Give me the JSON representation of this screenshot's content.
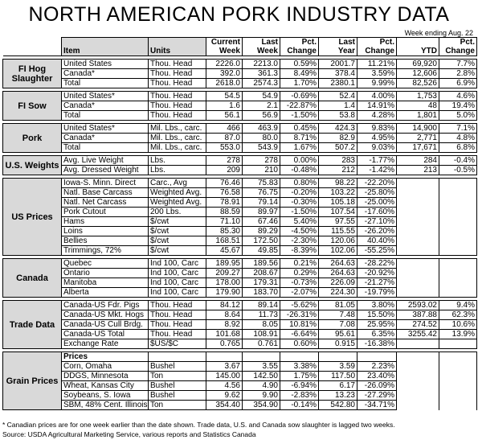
{
  "title": "NORTH AMERICAN PORK INDUSTRY DATA",
  "subtitle": "Week ending Aug. 22",
  "header": [
    "Item",
    "Units",
    "Current Week",
    "Last Week",
    "Pct. Change",
    "Last Year",
    "Pct. Change",
    "YTD",
    "Pct. Change"
  ],
  "groups": [
    {
      "label": "FI Hog Slaughter",
      "rows": [
        [
          "United States",
          "Thou. Head",
          "2226.0",
          "2213.0",
          "0.59%",
          "2001.7",
          "11.21%",
          "69,920",
          "7.7%"
        ],
        [
          "Canada*",
          "Thou. Head",
          "392.0",
          "361.3",
          "8.49%",
          "378.4",
          "3.59%",
          "12,606",
          "2.8%"
        ],
        [
          "Total",
          "Thou. Head",
          "2618.0",
          "2574.3",
          "1.70%",
          "2380.1",
          "9.99%",
          "82,526",
          "6.9%"
        ]
      ]
    },
    {
      "label": "FI Sow",
      "rows": [
        [
          "United States*",
          "Thou. Head",
          "54.5",
          "54.9",
          "-0.69%",
          "52.4",
          "4.00%",
          "1,753",
          "4.6%"
        ],
        [
          "Canada*",
          "Thou. Head",
          "1.6",
          "2.1",
          "-22.87%",
          "1.4",
          "14.91%",
          "48",
          "19.4%"
        ],
        [
          "Total",
          "Thou. Head",
          "56.1",
          "56.9",
          "-1.50%",
          "53.8",
          "4.28%",
          "1,801",
          "5.0%"
        ]
      ]
    },
    {
      "label": "Pork",
      "rows": [
        [
          "United States*",
          "Mil. Lbs., carc.",
          "466",
          "463.9",
          "0.45%",
          "424.3",
          "9.83%",
          "14,900",
          "7.1%"
        ],
        [
          "Canada*",
          "Mil. Lbs., carc.",
          "87.0",
          "80.0",
          "8.71%",
          "82.9",
          "4.95%",
          "2,771",
          "4.8%"
        ],
        [
          "Total",
          "Mil. Lbs., carc.",
          "553.0",
          "543.9",
          "1.67%",
          "507.2",
          "9.03%",
          "17,671",
          "6.8%"
        ]
      ]
    },
    {
      "label": "U.S. Weights",
      "rows": [
        [
          "Avg. Live Weight",
          "Lbs.",
          "278",
          "278",
          "0.00%",
          "283",
          "-1.77%",
          "284",
          "-0.4%"
        ],
        [
          "Avg. Dressed Weight",
          "Lbs.",
          "209",
          "210",
          "-0.48%",
          "212",
          "-1.42%",
          "213",
          "-0.5%"
        ]
      ]
    },
    {
      "label": "US Prices",
      "rows": [
        [
          "Iowa-S. Minn. Direct",
          "Carc., Avg",
          "76.46",
          "75.83",
          "0.80%",
          "98.22",
          "-22.20%"
        ],
        [
          "Natl. Base Carcass",
          "Weighted Avg.",
          "76.58",
          "76.75",
          "-0.20%",
          "103.22",
          "-25.80%"
        ],
        [
          "Natl. Net Carcass",
          "Weighted Avg.",
          "78.91",
          "79.14",
          "-0.30%",
          "105.18",
          "-25.00%"
        ],
        [
          "Pork Cutout",
          "200 Lbs.",
          "88.59",
          "89.97",
          "-1.50%",
          "107.54",
          "-17.60%"
        ],
        [
          "Hams",
          "$/cwt",
          "71.10",
          "67.46",
          "5.40%",
          "97.55",
          "-27.10%"
        ],
        [
          "Loins",
          "$/cwt",
          "85.30",
          "89.29",
          "-4.50%",
          "115.55",
          "-26.20%"
        ],
        [
          "Bellies",
          "$/cwt",
          "168.51",
          "172.50",
          "-2.30%",
          "120.06",
          "40.40%"
        ],
        [
          "Trimmings, 72%",
          "$/cwt",
          "45.67",
          "49.85",
          "-8.39%",
          "102.06",
          "-55.25%"
        ]
      ]
    },
    {
      "label": "Canada",
      "rows": [
        [
          "Quebec",
          "Ind 100, Carc",
          "189.95",
          "189.56",
          "0.21%",
          "264.63",
          "-28.22%"
        ],
        [
          "Ontario",
          "Ind 100, Carc",
          "209.27",
          "208.67",
          "0.29%",
          "264.63",
          "-20.92%"
        ],
        [
          "Manitoba",
          "Ind 100, Carc",
          "178.00",
          "179.31",
          "-0.73%",
          "226.09",
          "-21.27%"
        ],
        [
          "Alberta",
          "Ind 100, Carc",
          "179.90",
          "183.70",
          "-2.07%",
          "224.30",
          "-19.79%"
        ]
      ]
    },
    {
      "label": "Trade Data",
      "rows": [
        [
          "Canada-US Fdr. Pigs",
          "Thou. Head",
          "84.12",
          "89.14",
          "-5.62%",
          "81.05",
          "3.80%",
          "2593.02",
          "9.4%"
        ],
        [
          "Canada-US Mkt. Hogs",
          "Thou. Head",
          "8.64",
          "11.73",
          "-26.31%",
          "7.48",
          "15.50%",
          "387.88",
          "62.3%"
        ],
        [
          "Canada-US Cull Brdg.",
          "Thou. Head",
          "8.92",
          "8.05",
          "10.81%",
          "7.08",
          "25.95%",
          "274.52",
          "10.6%"
        ],
        [
          "Canada-US Total",
          "Thou. Head",
          "101.68",
          "108.91",
          "-6.64%",
          "95.61",
          "6.35%",
          "3255.42",
          "13.9%"
        ],
        [
          "Exchange Rate",
          "$US/$C",
          "0.765",
          "0.761",
          "0.60%",
          "0.915",
          "-16.38%"
        ]
      ]
    },
    {
      "label": "Grain Prices",
      "rows": [
        [
          "Prices"
        ],
        [
          "Corn, Omaha",
          "Bushel",
          "3.67",
          "3.55",
          "3.38%",
          "3.59",
          "2.23%"
        ],
        [
          "DDGS, Minnesota",
          "Ton",
          "145.00",
          "142.50",
          "1.75%",
          "117.50",
          "23.40%"
        ],
        [
          "Wheat, Kansas City",
          "Bushel",
          "4.56",
          "4.90",
          "-6.94%",
          "6.17",
          "-26.09%"
        ],
        [
          "Soybeans, S. Iowa",
          "Bushel",
          "9.62",
          "9.90",
          "-2.83%",
          "13.23",
          "-27.29%"
        ],
        [
          "SBM, 48% Cent. Illinois",
          "Ton",
          "354.40",
          "354.90",
          "-0.14%",
          "542.80",
          "-34.71%"
        ]
      ]
    }
  ],
  "footnotes": [
    "* Canadian prices are for one week earlier than the date shown.  Trade data, U.S. and Canada sow slaughter is lagged two weeks.",
    "Source:  USDA Agricultural Marketing Service, various reports and Statistics Canada"
  ]
}
